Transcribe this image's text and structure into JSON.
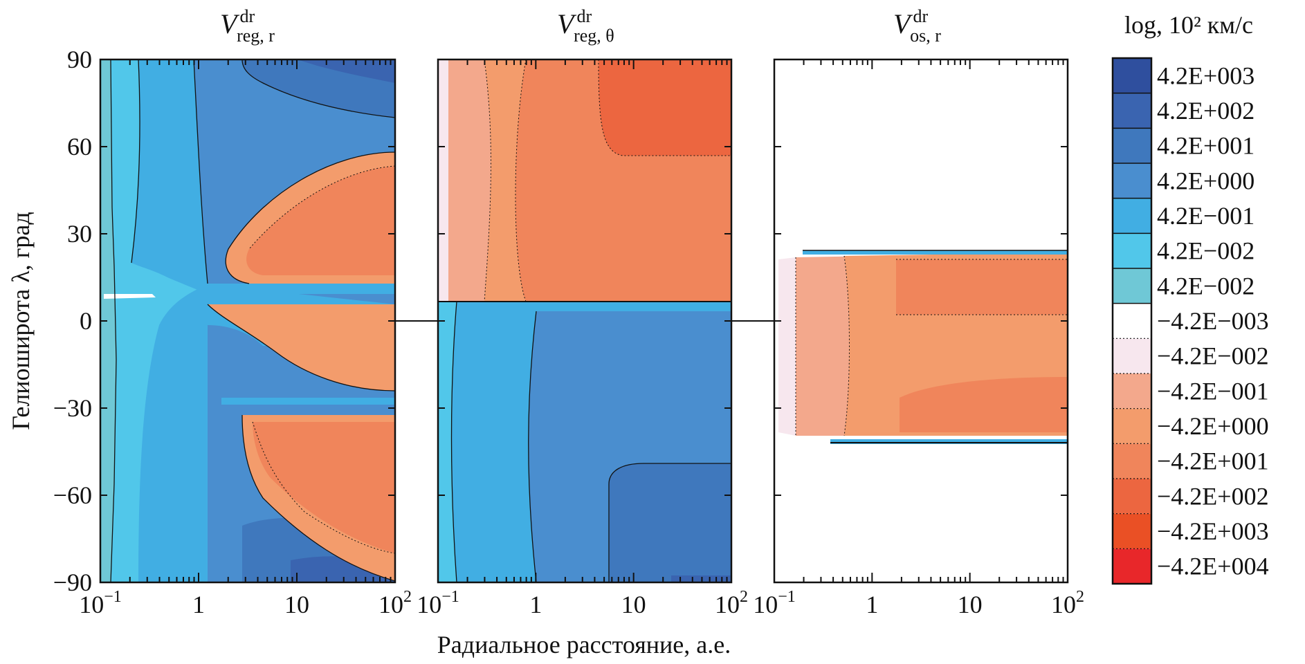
{
  "chart_data": {
    "type": "heatmap",
    "colorbar_title": "log, 10² км/с",
    "y_label": "Гелиоширота λ, град",
    "x_label": "Радиальное расстояние, а.е.",
    "y_range": [
      -90,
      90
    ],
    "x_range": [
      0.1,
      100
    ],
    "x_scale": "log",
    "y_ticks": [
      {
        "value": 90,
        "label": "90"
      },
      {
        "value": 60,
        "label": "60"
      },
      {
        "value": 30,
        "label": "30"
      },
      {
        "value": 0,
        "label": "0"
      },
      {
        "value": -30,
        "label": "−30"
      },
      {
        "value": -60,
        "label": "−60"
      },
      {
        "value": -90,
        "label": "−90"
      }
    ],
    "x_ticks": [
      {
        "value": 0.1,
        "base": "10",
        "exp": "−1"
      },
      {
        "value": 1,
        "base": "1",
        "exp": ""
      },
      {
        "value": 10,
        "base": "10",
        "exp": ""
      },
      {
        "value": 100,
        "base": "10",
        "exp": "2"
      }
    ],
    "panels": [
      {
        "id": "reg_r",
        "title_main": "V",
        "title_sup": "dr",
        "title_sub": "reg, r"
      },
      {
        "id": "reg_theta",
        "title_main": "V",
        "title_sup": "dr",
        "title_sub": "reg, θ"
      },
      {
        "id": "os_r",
        "title_main": "V",
        "title_sup": "dr",
        "title_sub": "os, r"
      }
    ],
    "colorbar": [
      {
        "label": "4.2E+003",
        "color": "#2f4f9e"
      },
      {
        "label": "4.2E+002",
        "color": "#3a64b0"
      },
      {
        "label": "4.2E+001",
        "color": "#3f78bd"
      },
      {
        "label": "4.2E+000",
        "color": "#4a8ecf"
      },
      {
        "label": "4.2E−001",
        "color": "#41aee3"
      },
      {
        "label": "4.2E−002",
        "color": "#51c7ea"
      },
      {
        "label": "4.2E−002",
        "color": "#6fc8d6"
      },
      {
        "label": "−4.2E−003",
        "color": "#ffffff"
      },
      {
        "label": "−4.2E−002",
        "color": "#f7e7ee"
      },
      {
        "label": "−4.2E−001",
        "color": "#f3a88c"
      },
      {
        "label": "−4.2E+000",
        "color": "#f39c6c"
      },
      {
        "label": "−4.2E+001",
        "color": "#f0855b"
      },
      {
        "label": "−4.2E+002",
        "color": "#ec6640"
      },
      {
        "label": "−4.2E+003",
        "color": "#ea5025"
      },
      {
        "label": "−4.2E+004",
        "color": "#e8272a"
      }
    ]
  }
}
